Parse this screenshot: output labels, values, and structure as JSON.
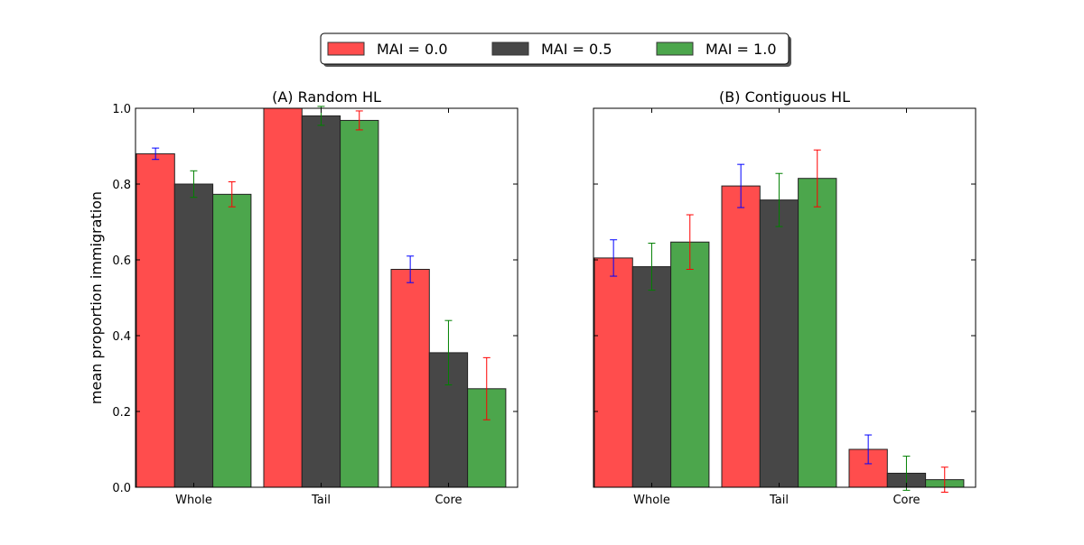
{
  "chart_data": {
    "type": "bar",
    "legend": {
      "placement": "top-center",
      "entries": [
        {
          "name": "MAI = 0.0",
          "color": "#ff4d4d"
        },
        {
          "name": "MAI = 0.5",
          "color": "#474747"
        },
        {
          "name": "MAI = 1.0",
          "color": "#4ca64c"
        }
      ]
    },
    "ylabel": "mean proportion immigration",
    "ylim": [
      0,
      1.0
    ],
    "yticks": [
      "0.0",
      "0.2",
      "0.4",
      "0.6",
      "0.8",
      "1.0"
    ],
    "error_bar_colors": [
      "#0000ff",
      "#008000",
      "#ff0000"
    ],
    "panels": [
      {
        "title": "(A) Random HL",
        "categories": [
          "Whole",
          "Tail",
          "Core"
        ],
        "series": [
          {
            "name": "MAI = 0.0",
            "values": [
              0.88,
              1.0,
              0.575
            ],
            "errors": [
              0.015,
              0.0,
              0.035
            ]
          },
          {
            "name": "MAI = 0.5",
            "values": [
              0.8,
              0.98,
              0.355
            ],
            "errors": [
              0.035,
              0.025,
              0.085
            ]
          },
          {
            "name": "MAI = 1.0",
            "values": [
              0.773,
              0.968,
              0.26
            ],
            "errors": [
              0.033,
              0.025,
              0.082
            ]
          }
        ]
      },
      {
        "title": "(B) Contiguous HL",
        "categories": [
          "Whole",
          "Tail",
          "Core"
        ],
        "series": [
          {
            "name": "MAI = 0.0",
            "values": [
              0.605,
              0.795,
              0.1
            ],
            "errors": [
              0.048,
              0.057,
              0.038
            ]
          },
          {
            "name": "MAI = 0.5",
            "values": [
              0.582,
              0.758,
              0.037
            ],
            "errors": [
              0.062,
              0.07,
              0.045
            ]
          },
          {
            "name": "MAI = 1.0",
            "values": [
              0.647,
              0.815,
              0.02
            ],
            "errors": [
              0.072,
              0.075,
              0.033
            ]
          }
        ]
      }
    ]
  }
}
